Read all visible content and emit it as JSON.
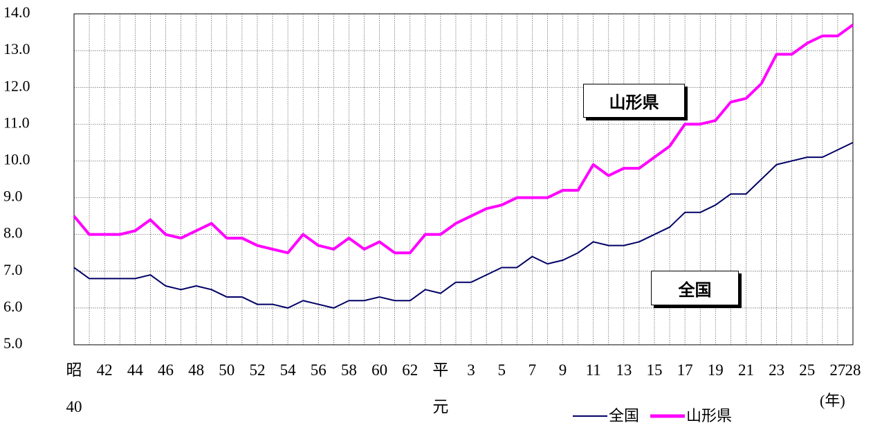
{
  "chart_data": {
    "type": "line",
    "categories": [
      "昭\n40",
      null,
      "42",
      null,
      "44",
      null,
      "46",
      null,
      "48",
      null,
      "50",
      null,
      "52",
      null,
      "54",
      null,
      "56",
      null,
      "58",
      null,
      "60",
      null,
      "62",
      null,
      "平\n元",
      null,
      "3",
      null,
      "5",
      null,
      "7",
      null,
      "9",
      null,
      "11",
      null,
      "13",
      null,
      "15",
      null,
      "17",
      null,
      "19",
      null,
      "21",
      null,
      "23",
      null,
      "25",
      null,
      "27",
      "28"
    ],
    "series": [
      {
        "name": "全国",
        "color": "#000066",
        "values": [
          7.1,
          6.8,
          6.8,
          6.8,
          6.8,
          6.9,
          6.6,
          6.5,
          6.6,
          6.5,
          6.3,
          6.3,
          6.1,
          6.1,
          6.0,
          6.2,
          6.1,
          6.0,
          6.2,
          6.2,
          6.3,
          6.2,
          6.2,
          6.5,
          6.4,
          6.7,
          6.7,
          6.9,
          7.1,
          7.1,
          7.4,
          7.2,
          7.3,
          7.5,
          7.8,
          7.7,
          7.7,
          7.8,
          8.0,
          8.2,
          8.6,
          8.6,
          8.8,
          9.1,
          9.1,
          9.5,
          9.9,
          10.0,
          10.1,
          10.1,
          10.3,
          10.5
        ]
      },
      {
        "name": "山形県",
        "color": "#ff00ff",
        "values": [
          8.5,
          8.0,
          8.0,
          8.0,
          8.1,
          8.4,
          8.0,
          7.9,
          8.1,
          8.3,
          7.9,
          7.9,
          7.7,
          7.6,
          7.5,
          8.0,
          7.7,
          7.6,
          7.9,
          7.6,
          7.8,
          7.5,
          7.5,
          8.0,
          8.0,
          8.3,
          8.5,
          8.7,
          8.8,
          9.0,
          9.0,
          9.0,
          9.2,
          9.2,
          9.9,
          9.6,
          9.8,
          9.8,
          10.1,
          10.4,
          11.0,
          11.0,
          11.1,
          11.6,
          11.7,
          12.1,
          12.9,
          12.9,
          13.2,
          13.4,
          13.4,
          13.7
        ]
      }
    ],
    "ylim": [
      5,
      14
    ],
    "yticks": [
      {
        "value": 5,
        "label": "5.0"
      },
      {
        "value": 6,
        "label": "6.0"
      },
      {
        "value": 7,
        "label": "7.0"
      },
      {
        "value": 8,
        "label": "8.0"
      },
      {
        "value": 9,
        "label": "9.0"
      },
      {
        "value": 10,
        "label": "10.0"
      },
      {
        "value": 11,
        "label": "11.0"
      },
      {
        "value": 12,
        "label": "12.0"
      },
      {
        "value": 13,
        "label": "13.0"
      },
      {
        "value": 14,
        "label": "14.0"
      }
    ],
    "grid": true,
    "legend": "bottom-right",
    "x_unit": "(年)",
    "annotations": [
      "山形県",
      "全国"
    ]
  }
}
